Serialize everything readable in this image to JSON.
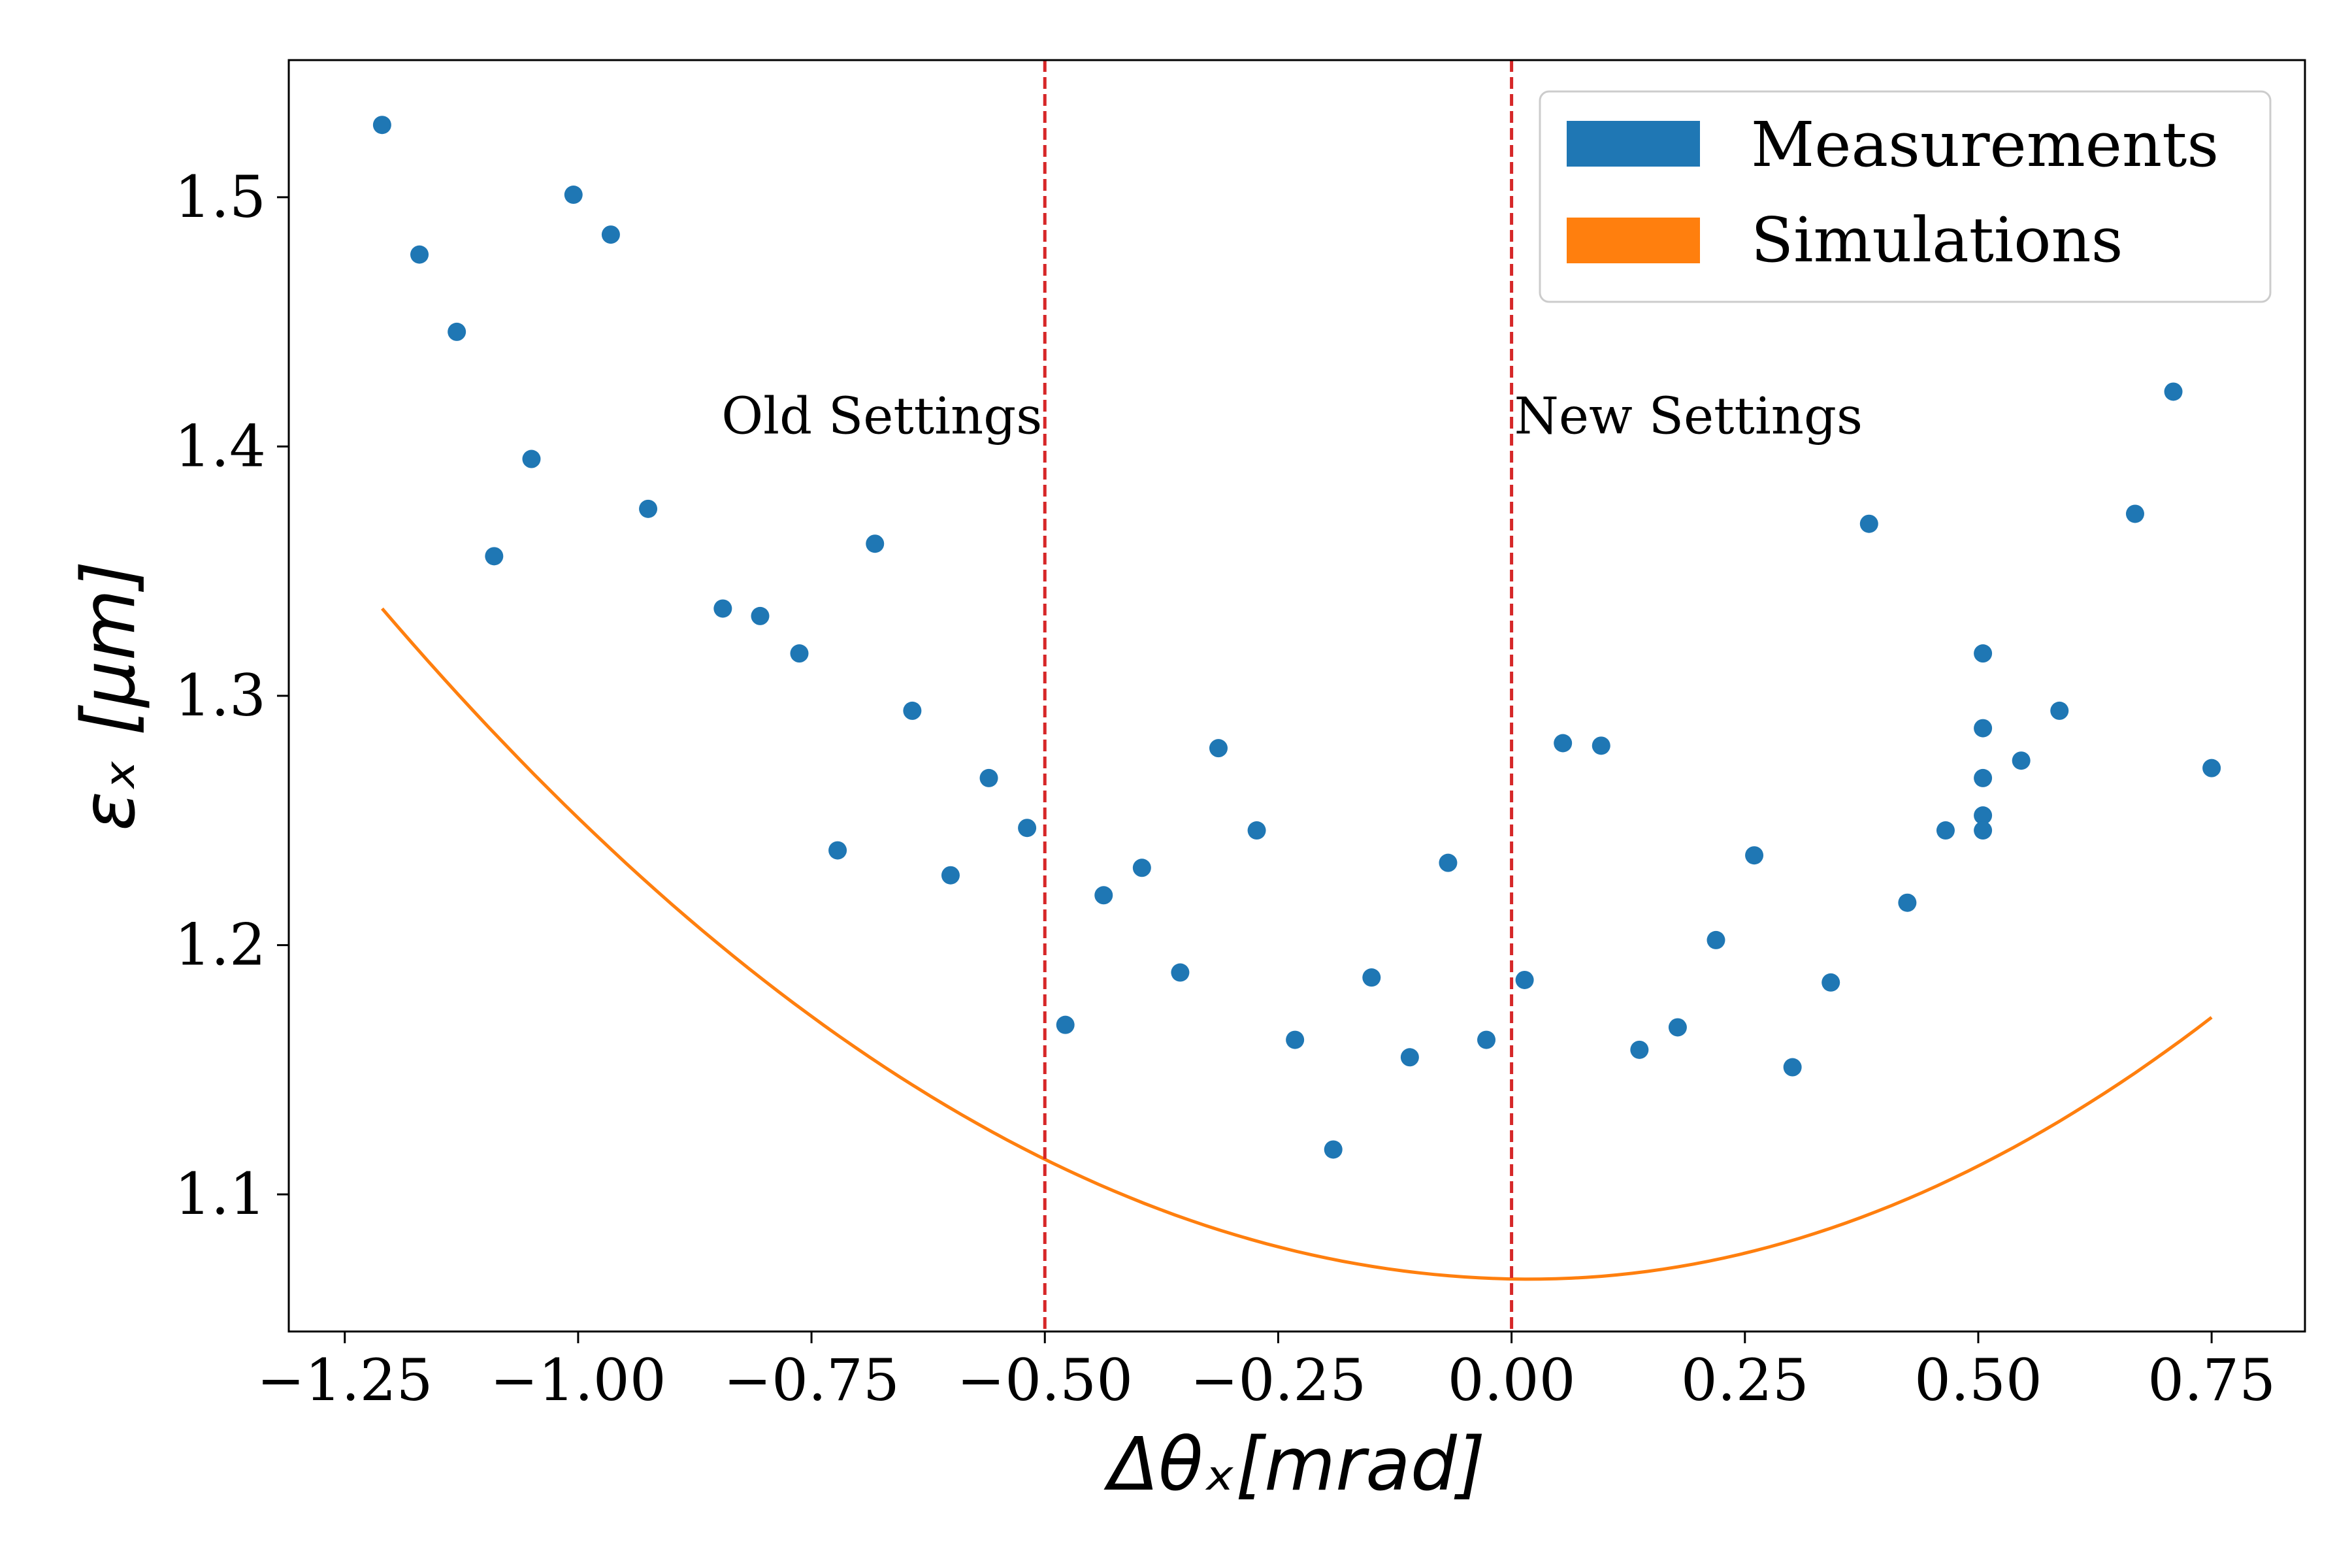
{
  "chart_data": {
    "type": "scatter",
    "xlabel": "Δθₓ[mrad]",
    "ylabel": "εₓ [μm]",
    "xlim": [
      -1.31,
      0.85
    ],
    "ylim": [
      1.045,
      1.555
    ],
    "xticks": [
      -1.25,
      -1.0,
      -0.75,
      -0.5,
      -0.25,
      0.0,
      0.25,
      0.5,
      0.75
    ],
    "xtick_labels": [
      "−1.25",
      "−1.00",
      "−0.75",
      "−0.50",
      "−0.25",
      "0.00",
      "0.25",
      "0.50",
      "0.75"
    ],
    "yticks": [
      1.1,
      1.2,
      1.3,
      1.4,
      1.5
    ],
    "ytick_labels": [
      "1.1",
      "1.2",
      "1.3",
      "1.4",
      "1.5"
    ],
    "grid": false,
    "legend": {
      "position": "top-right",
      "entries": [
        {
          "label": "Measurements",
          "color": "#1f77b4"
        },
        {
          "label": "Simulations",
          "color": "#ff7f0e"
        }
      ]
    },
    "vlines": [
      {
        "x": -0.5,
        "color": "#d62728",
        "style": "dashed"
      },
      {
        "x": 0.0,
        "color": "#d62728",
        "style": "dashed"
      }
    ],
    "annotations": [
      {
        "text": "Old Settings",
        "x": -0.5,
        "y": 1.41,
        "align": "right"
      },
      {
        "text": "New Settings",
        "x": 0.0,
        "y": 1.41,
        "align": "left"
      }
    ],
    "series": [
      {
        "name": "Measurements",
        "type": "scatter",
        "color": "#1f77b4",
        "points": [
          [
            -1.21,
            1.529
          ],
          [
            -1.17,
            1.477
          ],
          [
            -1.13,
            1.446
          ],
          [
            -1.09,
            1.356
          ],
          [
            -1.05,
            1.395
          ],
          [
            -1.005,
            1.501
          ],
          [
            -0.965,
            1.485
          ],
          [
            -0.925,
            1.375
          ],
          [
            -0.845,
            1.335
          ],
          [
            -0.805,
            1.332
          ],
          [
            -0.763,
            1.317
          ],
          [
            -0.722,
            1.238
          ],
          [
            -0.682,
            1.361
          ],
          [
            -0.642,
            1.294
          ],
          [
            -0.601,
            1.228
          ],
          [
            -0.56,
            1.267
          ],
          [
            -0.519,
            1.247
          ],
          [
            -0.478,
            1.168
          ],
          [
            -0.437,
            1.22
          ],
          [
            -0.396,
            1.231
          ],
          [
            -0.355,
            1.189
          ],
          [
            -0.314,
            1.279
          ],
          [
            -0.273,
            1.246
          ],
          [
            -0.232,
            1.162
          ],
          [
            -0.191,
            1.118
          ],
          [
            -0.15,
            1.187
          ],
          [
            -0.109,
            1.155
          ],
          [
            -0.068,
            1.233
          ],
          [
            -0.027,
            1.162
          ],
          [
            0.014,
            1.186
          ],
          [
            0.055,
            1.281
          ],
          [
            0.096,
            1.28
          ],
          [
            0.137,
            1.158
          ],
          [
            0.178,
            1.167
          ],
          [
            0.219,
            1.202
          ],
          [
            0.26,
            1.236
          ],
          [
            0.301,
            1.151
          ],
          [
            0.342,
            1.185
          ],
          [
            0.383,
            1.369
          ],
          [
            0.424,
            1.217
          ],
          [
            0.465,
            1.246
          ],
          [
            0.505,
            1.317
          ],
          [
            0.505,
            1.287
          ],
          [
            0.505,
            1.267
          ],
          [
            0.505,
            1.252
          ],
          [
            0.505,
            1.246
          ],
          [
            0.546,
            1.274
          ],
          [
            0.587,
            1.294
          ],
          [
            0.668,
            1.373
          ],
          [
            0.709,
            1.422
          ],
          [
            0.75,
            1.271
          ]
        ]
      },
      {
        "name": "Simulations",
        "type": "line",
        "color": "#ff7f0e",
        "curve": {
          "form": "quadratic",
          "vertex_x": 0.02,
          "vertex_y": 1.066,
          "x_range": [
            -1.21,
            0.75
          ],
          "y_at_left": 1.335,
          "y_at_right": 1.171
        }
      }
    ]
  }
}
